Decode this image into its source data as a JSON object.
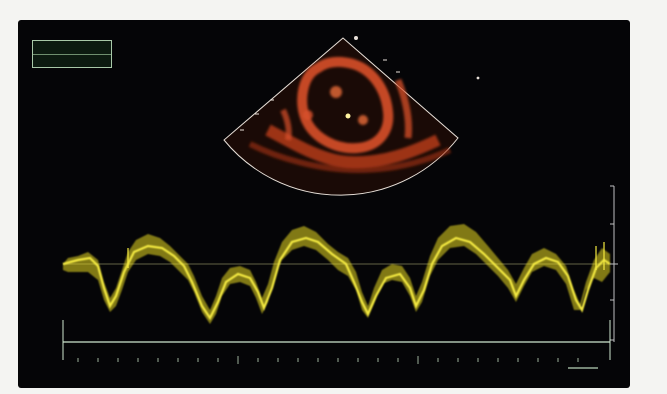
{
  "image": {
    "description_kind": "ultrasound-display",
    "colors": {
      "frame_bg": "#f4f4f2",
      "screen_bg": "#050507",
      "sector_fill": "#d8502a",
      "sector_outline": "#e8e0d8",
      "waveform": "#e8d820",
      "baseline": "#cfe8cf",
      "measure_box": "#a8c8a8"
    },
    "icons": [
      "sector-scan-icon",
      "doppler-waveform-icon"
    ]
  },
  "measurement_box": {
    "row1_label": "",
    "row1_value": "",
    "row2_label": "",
    "row2_value": ""
  },
  "scale": {
    "label_1": "",
    "label_2": "",
    "label_3": "",
    "label_4": ""
  }
}
